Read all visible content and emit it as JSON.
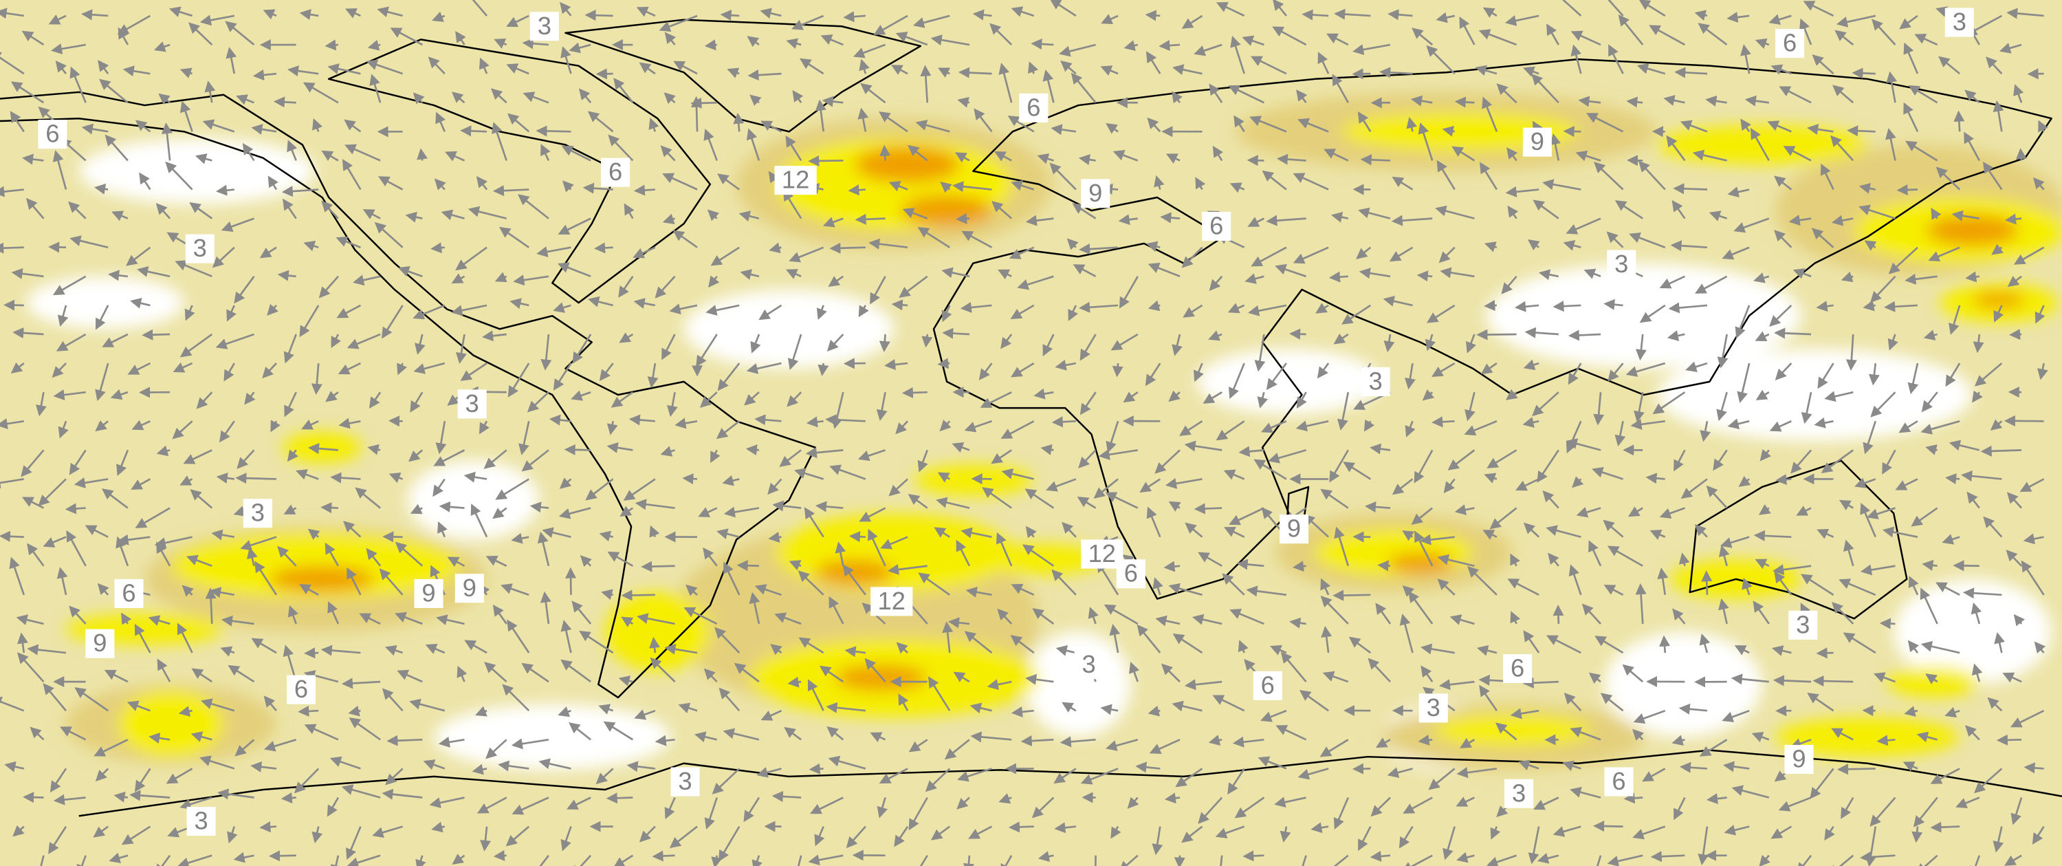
{
  "contour_labels": [
    "3",
    "6",
    "3",
    "6",
    "6",
    "6",
    "12",
    "9",
    "9",
    "3",
    "6",
    "3",
    "3",
    "3",
    "3",
    "9",
    "12",
    "6",
    "12",
    "6",
    "9",
    "9",
    "9",
    "6",
    "3",
    "6",
    "6",
    "3",
    "3",
    "9",
    "6",
    "3",
    "3",
    "3"
  ]
}
